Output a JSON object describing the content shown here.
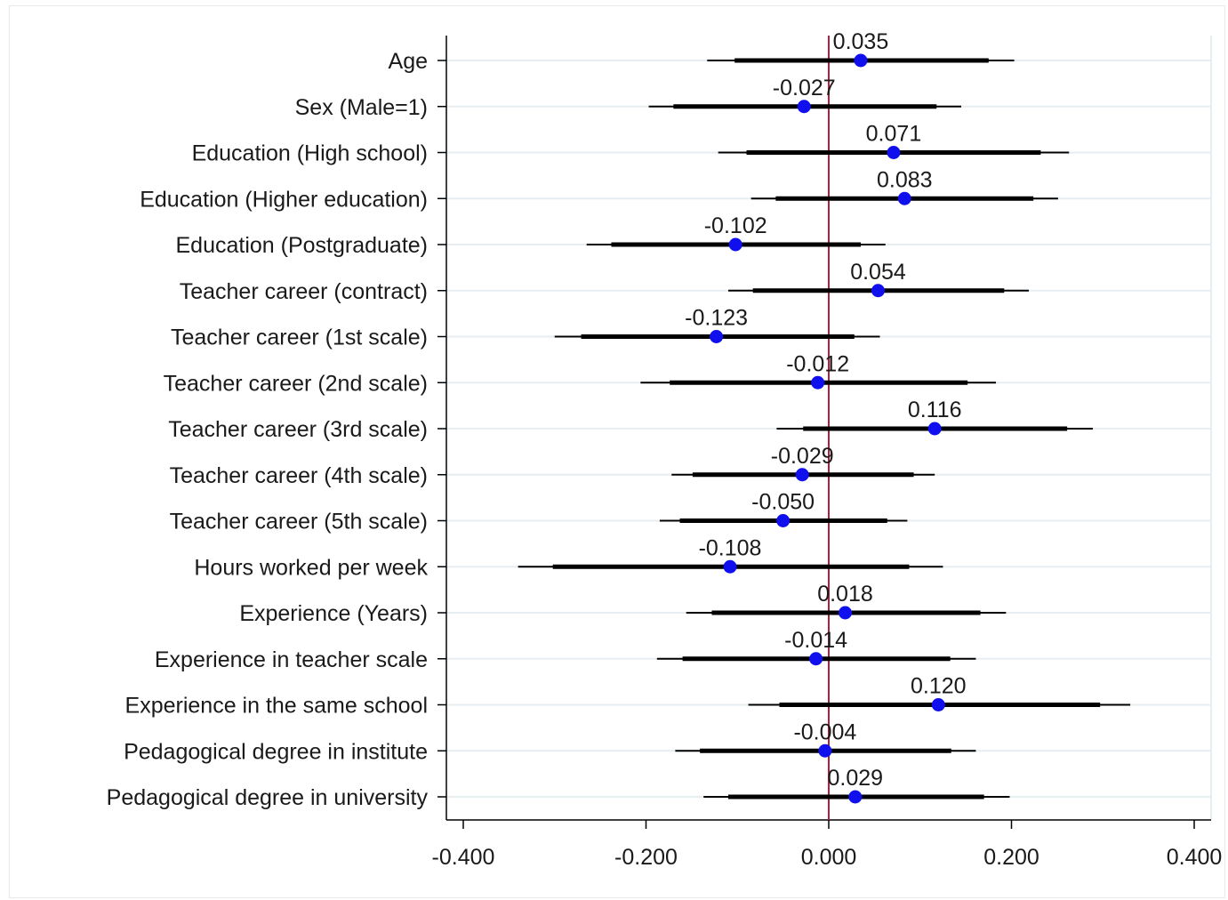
{
  "chart_data": {
    "type": "scatter",
    "subtype": "coefficient-plot",
    "title": "",
    "xlabel": "",
    "ylabel": "",
    "xlim": [
      -0.42,
      0.42
    ],
    "x_ticks": [
      "-0.400",
      "-0.200",
      "0.000",
      "0.200",
      "0.400"
    ],
    "x_tick_values": [
      -0.4,
      -0.2,
      0.0,
      0.2,
      0.4
    ],
    "reference_line": 0,
    "grid": "horizontal",
    "colors": {
      "point": "#1010ee",
      "reference_line": "#b0203c",
      "ci": "#000000",
      "grid": "#e6eef2"
    },
    "categories": [
      "Age",
      "Sex (Male=1)",
      "Education (High school)",
      "Education (Higher education)",
      "Education (Postgraduate)",
      "Teacher career (contract)",
      "Teacher career (1st scale)",
      "Teacher career (2nd scale)",
      "Teacher career (3rd scale)",
      "Teacher career (4th scale)",
      "Teacher career (5th scale)",
      "Hours worked per week",
      "Experience (Years)",
      "Experience in teacher scale",
      "Experience in the same school",
      "Pedagogical degree in institute",
      "Pedagogical degree in university"
    ],
    "values": [
      0.035,
      -0.027,
      0.071,
      0.083,
      -0.102,
      0.054,
      -0.123,
      -0.012,
      0.116,
      -0.029,
      -0.05,
      -0.108,
      0.018,
      -0.014,
      0.12,
      -0.004,
      0.029
    ],
    "value_labels": [
      "0.035",
      "-0.027",
      "0.071",
      "0.083",
      "-0.102",
      "0.054",
      "-0.123",
      "-0.012",
      "0.116",
      "-0.029",
      "-0.050",
      "-0.108",
      "0.018",
      "-0.014",
      "0.120",
      "-0.004",
      "0.029"
    ],
    "ci_95": [
      [
        -0.133,
        0.203
      ],
      [
        -0.197,
        0.145
      ],
      [
        -0.121,
        0.263
      ],
      [
        -0.085,
        0.251
      ],
      [
        -0.265,
        0.062
      ],
      [
        -0.11,
        0.219
      ],
      [
        -0.3,
        0.056
      ],
      [
        -0.206,
        0.183
      ],
      [
        -0.057,
        0.289
      ],
      [
        -0.172,
        0.116
      ],
      [
        -0.185,
        0.086
      ],
      [
        -0.34,
        0.125
      ],
      [
        -0.156,
        0.194
      ],
      [
        -0.188,
        0.161
      ],
      [
        -0.088,
        0.33
      ],
      [
        -0.168,
        0.161
      ],
      [
        -0.137,
        0.198
      ]
    ],
    "ci_90": [
      [
        -0.103,
        0.175
      ],
      [
        -0.17,
        0.118
      ],
      [
        -0.09,
        0.232
      ],
      [
        -0.058,
        0.224
      ],
      [
        -0.238,
        0.035
      ],
      [
        -0.083,
        0.192
      ],
      [
        -0.271,
        0.028
      ],
      [
        -0.174,
        0.152
      ],
      [
        -0.028,
        0.261
      ],
      [
        -0.149,
        0.093
      ],
      [
        -0.163,
        0.064
      ],
      [
        -0.302,
        0.088
      ],
      [
        -0.128,
        0.166
      ],
      [
        -0.16,
        0.133
      ],
      [
        -0.054,
        0.297
      ],
      [
        -0.141,
        0.134
      ],
      [
        -0.11,
        0.17
      ]
    ]
  }
}
